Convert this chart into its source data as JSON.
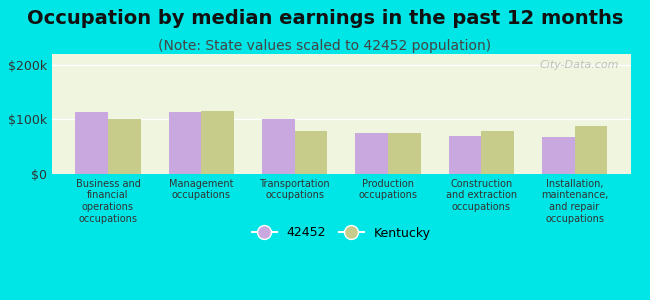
{
  "title": "Occupation by median earnings in the past 12 months",
  "subtitle": "(Note: State values scaled to 42452 population)",
  "categories": [
    "Business and\nfinancial\noperations\noccupations",
    "Management\noccupations",
    "Transportation\noccupations",
    "Production\noccupations",
    "Construction\nand extraction\noccupations",
    "Installation,\nmaintenance,\nand repair\noccupations"
  ],
  "values_42452": [
    113000,
    113000,
    100000,
    75000,
    70000,
    68000
  ],
  "values_kentucky": [
    100000,
    116000,
    78000,
    75000,
    78000,
    88000
  ],
  "bar_color_42452": "#c9a8e0",
  "bar_color_kentucky": "#c8cc8a",
  "background_outer": "#00e5e5",
  "background_plot": "#f0f5e0",
  "ylabel_ticks": [
    "$0",
    "$100k",
    "$200k"
  ],
  "ytick_values": [
    0,
    100000,
    200000
  ],
  "ylim": [
    0,
    220000
  ],
  "legend_label_1": "42452",
  "legend_label_2": "Kentucky",
  "title_fontsize": 14,
  "subtitle_fontsize": 10,
  "bar_width": 0.35,
  "watermark": "City-Data.com"
}
